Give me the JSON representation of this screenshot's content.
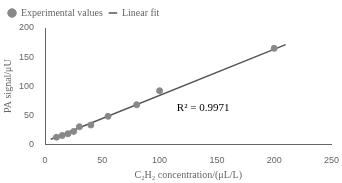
{
  "chart_data": {
    "type": "scatter",
    "xlabel": "C₂H₂ concentration/(μL/L)",
    "ylabel": "PA signal/μU",
    "series": [
      {
        "name": "Experimental values",
        "type": "scatter",
        "color": "#888888",
        "marker": "point",
        "x": [
          10,
          15,
          20,
          25,
          30,
          40,
          55,
          80,
          100,
          200
        ],
        "values": [
          12,
          15,
          18,
          22,
          30,
          33,
          48,
          68,
          92,
          165
        ]
      },
      {
        "name": "Linear fit",
        "type": "line",
        "color": "#555555",
        "line_style": "solid",
        "x": [
          5,
          210
        ],
        "values": [
          8.475,
          171.45
        ]
      }
    ],
    "xlim": [
      0,
      250
    ],
    "ylim": [
      0,
      200
    ],
    "xticks": [
      0,
      50,
      100,
      150,
      200,
      250
    ],
    "yticks": [
      0,
      50,
      100,
      150,
      200
    ],
    "grid": false,
    "legend": "upper left",
    "annotations": [
      "R² = 0.9971"
    ]
  }
}
